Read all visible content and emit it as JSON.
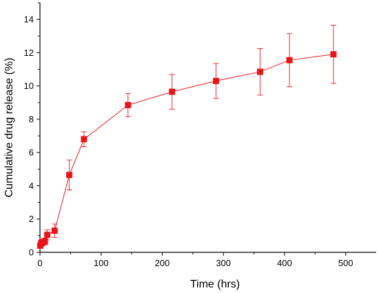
{
  "chart_data": {
    "type": "scatter",
    "xlabel": "Time (hrs)",
    "ylabel": "Cumulative drug release (%)",
    "xlim": [
      0,
      550
    ],
    "ylim": [
      0,
      15
    ],
    "xticks": [
      0,
      100,
      200,
      300,
      400,
      500
    ],
    "yticks": [
      0,
      2,
      4,
      6,
      8,
      10,
      12,
      14
    ],
    "grid": false,
    "legend": "none",
    "color": "#e8151b",
    "marker": "square",
    "connected": true,
    "series": [
      {
        "x": [
          0.5,
          2,
          4,
          8,
          12,
          24,
          48,
          72,
          144,
          216,
          288,
          360,
          408,
          480
        ],
        "y": [
          0.4,
          0.55,
          0.6,
          0.65,
          1.05,
          1.3,
          4.65,
          6.8,
          8.85,
          9.65,
          10.3,
          10.85,
          11.55,
          11.9
        ],
        "error": [
          0.15,
          0.2,
          0.2,
          0.2,
          0.3,
          0.4,
          0.9,
          0.45,
          0.7,
          1.05,
          1.05,
          1.4,
          1.6,
          1.75
        ]
      }
    ]
  }
}
